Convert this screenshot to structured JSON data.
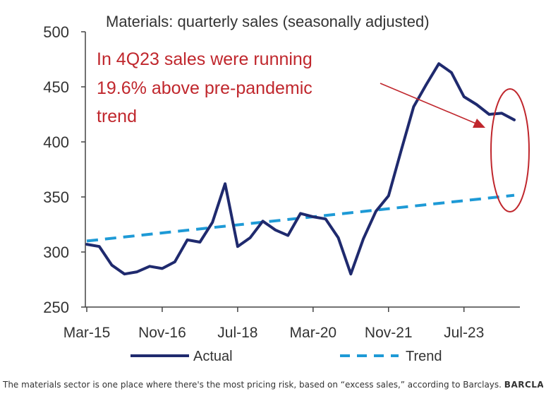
{
  "chart_data": {
    "type": "line",
    "title": "Materials: quarterly sales (seasonally adjusted)",
    "ylim": [
      250,
      500
    ],
    "y_ticks": [
      250,
      300,
      350,
      400,
      450,
      500
    ],
    "x_tick_labels": [
      "Mar-15",
      "Nov-16",
      "Jul-18",
      "Mar-20",
      "Nov-21",
      "Jul-23"
    ],
    "x_tick_index": [
      0,
      6,
      12,
      18,
      24,
      30
    ],
    "grid": false,
    "legend_position": "bottom",
    "series": [
      {
        "name": "Actual",
        "color": "#1f2a6e",
        "style": "solid",
        "values": [
          307,
          305,
          288,
          280,
          282,
          287,
          285,
          291,
          311,
          309,
          327,
          362,
          305,
          313,
          328,
          320,
          315,
          335,
          332,
          330,
          313,
          280,
          312,
          337,
          351,
          392,
          432,
          452,
          471,
          463,
          441,
          434,
          425,
          426,
          420
        ]
      },
      {
        "name": "Trend",
        "color": "#1e9ad6",
        "style": "dashed",
        "values": [
          310,
          351.5
        ]
      }
    ],
    "annotation": {
      "lines": [
        "In 4Q23 sales were running",
        "19.6% above pre-pandemic",
        "trend"
      ],
      "color": "#c0272d"
    }
  },
  "caption": {
    "text": "The materials sector is one place where there's the most pricing risk, based on “excess sales,” according to Barclays.",
    "brand": "BARCLAYS"
  }
}
